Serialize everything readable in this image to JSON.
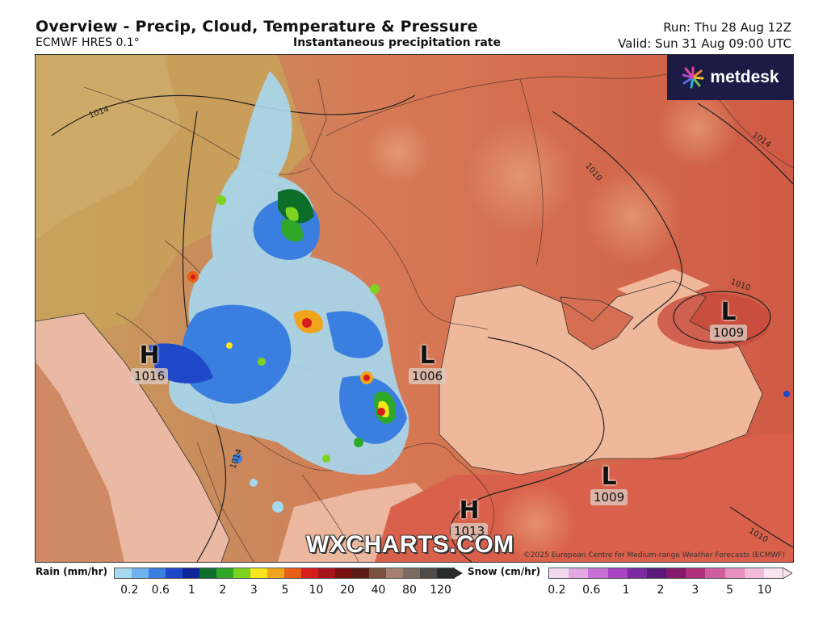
{
  "header": {
    "title": "Overview - Precip, Cloud, Temperature & Pressure",
    "model": "ECMWF HRES 0.1°",
    "subtitle": "Instantaneous precipitation rate",
    "run": "Run: Thu 28 Aug 12Z",
    "valid": "Valid: Sun 31 Aug 09:00 UTC"
  },
  "logo": {
    "text": "metdesk",
    "icon": "starburst-logo-icon"
  },
  "pressure_centers": [
    {
      "type": "H",
      "value": "1016"
    },
    {
      "type": "L",
      "value": "1006"
    },
    {
      "type": "L",
      "value": "1009"
    },
    {
      "type": "L",
      "value": "1009"
    },
    {
      "type": "H",
      "value": "1013"
    }
  ],
  "isobar_labels": [
    "1014",
    "1010",
    "1014",
    "1010",
    "1014",
    "1010"
  ],
  "watermark": "WXCHARTS.COM",
  "copyright": "©2025 European Centre for Medium-range Weather Forecasts (ECMWF)",
  "legend": {
    "rain": {
      "label": "Rain (mm/hr)",
      "ticks": [
        "0.2",
        "0.6",
        "1",
        "2",
        "3",
        "5",
        "10",
        "20",
        "40",
        "80",
        "120"
      ],
      "colors": [
        "#a6d8f0",
        "#6fb4ec",
        "#3a7fe0",
        "#1f48c8",
        "#10249a",
        "#0d6e2a",
        "#2fa82a",
        "#7ed321",
        "#f5e61e",
        "#f0a41b",
        "#e95f16",
        "#d61c1c",
        "#a8141c",
        "#7a1010",
        "#5a1c14",
        "#7a5040",
        "#a48070",
        "#7a6a60",
        "#4e4a48",
        "#2a2a2a"
      ]
    },
    "snow": {
      "label": "Snow (cm/hr)",
      "ticks": [
        "0.2",
        "0.6",
        "1",
        "2",
        "3",
        "5",
        "10"
      ],
      "colors": [
        "#f3d8f0",
        "#e3a8e4",
        "#c870d6",
        "#a845c4",
        "#7c2aa0",
        "#5a1a78",
        "#851a6c",
        "#b0307e",
        "#d05e9e",
        "#e590be",
        "#f2bcd8",
        "#fae4f0"
      ]
    }
  },
  "colors": {
    "land_warm": "#d9724f",
    "land_hot": "#cf5540",
    "sea": "#f0b79a",
    "west_land": "#c9a05c",
    "rain_blue": "#1f48c8",
    "rain_cyan": "#a6d8f0",
    "rain_green": "#2fa82a",
    "rain_red": "#d61c1c"
  }
}
